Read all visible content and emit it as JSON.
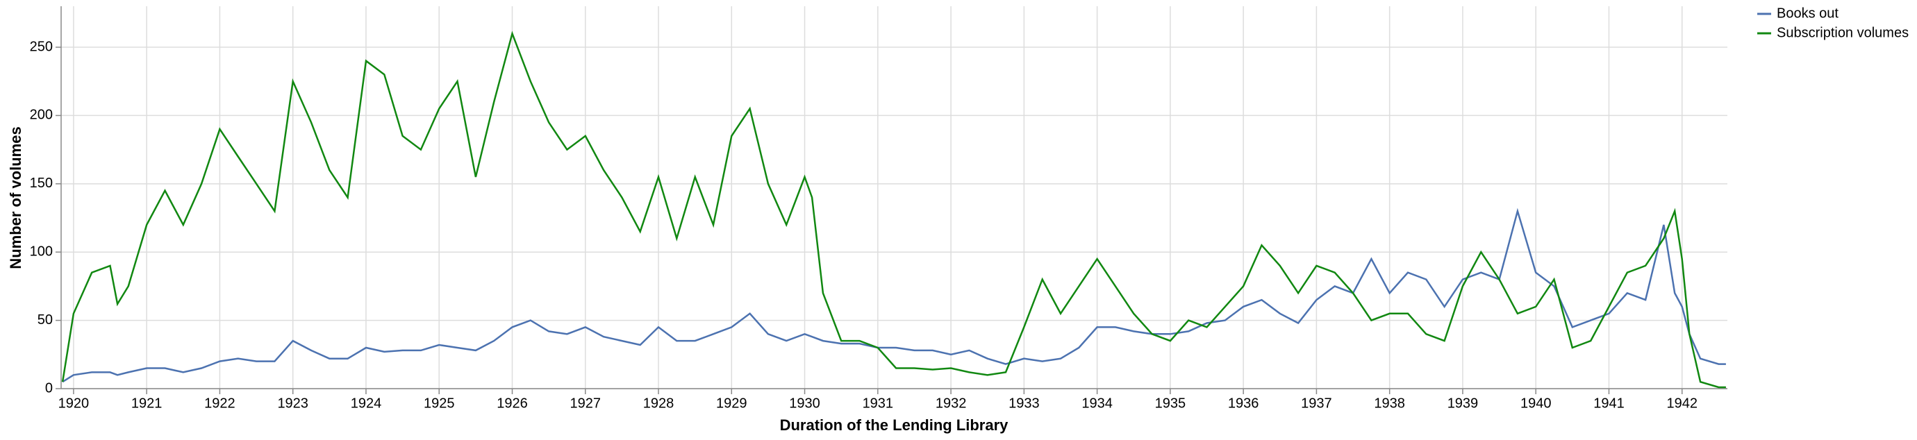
{
  "chart_data": {
    "type": "line",
    "x_label": "Duration of the Lending Library",
    "y_label": "Number of volumes",
    "x": [
      1919.85,
      1920,
      1920.25,
      1920.5,
      1920.6,
      1920.75,
      1921,
      1921.25,
      1921.5,
      1921.75,
      1922,
      1922.25,
      1922.5,
      1922.75,
      1923,
      1923.25,
      1923.5,
      1923.75,
      1924,
      1924.25,
      1924.5,
      1924.75,
      1925,
      1925.25,
      1925.5,
      1925.75,
      1926,
      1926.25,
      1926.5,
      1926.75,
      1927,
      1927.25,
      1927.5,
      1927.75,
      1928,
      1928.25,
      1928.5,
      1928.75,
      1929,
      1929.25,
      1929.5,
      1929.75,
      1930,
      1930.1,
      1930.25,
      1930.5,
      1930.75,
      1931,
      1931.25,
      1931.5,
      1931.75,
      1932,
      1932.25,
      1932.5,
      1932.75,
      1933,
      1933.25,
      1933.5,
      1933.75,
      1934,
      1934.25,
      1934.5,
      1934.75,
      1935,
      1935.25,
      1935.5,
      1935.75,
      1936,
      1936.25,
      1936.5,
      1936.75,
      1937,
      1937.25,
      1937.5,
      1937.75,
      1938,
      1938.25,
      1938.5,
      1938.75,
      1939,
      1939.25,
      1939.5,
      1939.75,
      1940,
      1940.25,
      1940.5,
      1940.75,
      1941,
      1941.25,
      1941.5,
      1941.75,
      1941.9,
      1942,
      1942.1,
      1942.25,
      1942.5,
      1942.6
    ],
    "series": [
      {
        "name": "Books out",
        "color": "#4c72b0",
        "values": [
          5,
          10,
          12,
          12,
          10,
          12,
          15,
          15,
          12,
          15,
          20,
          22,
          20,
          20,
          35,
          28,
          22,
          22,
          30,
          27,
          28,
          28,
          32,
          30,
          28,
          35,
          45,
          50,
          42,
          40,
          45,
          38,
          35,
          32,
          45,
          35,
          35,
          40,
          45,
          55,
          40,
          35,
          40,
          38,
          35,
          33,
          33,
          30,
          30,
          28,
          28,
          25,
          28,
          22,
          18,
          22,
          20,
          22,
          30,
          45,
          45,
          42,
          40,
          40,
          42,
          48,
          50,
          60,
          65,
          55,
          48,
          65,
          75,
          70,
          95,
          70,
          85,
          80,
          60,
          80,
          85,
          80,
          130,
          85,
          75,
          45,
          50,
          55,
          70,
          65,
          120,
          70,
          60,
          40,
          22,
          18,
          18
        ]
      },
      {
        "name": "Subscription volumes",
        "color": "#118811",
        "values": [
          5,
          55,
          85,
          90,
          62,
          75,
          120,
          145,
          120,
          150,
          190,
          170,
          150,
          130,
          225,
          195,
          160,
          140,
          240,
          230,
          185,
          175,
          205,
          225,
          155,
          210,
          260,
          225,
          195,
          175,
          185,
          160,
          140,
          115,
          155,
          110,
          155,
          120,
          185,
          205,
          150,
          120,
          155,
          140,
          70,
          35,
          35,
          30,
          15,
          15,
          14,
          15,
          12,
          10,
          12,
          45,
          80,
          55,
          75,
          95,
          75,
          55,
          40,
          35,
          50,
          45,
          60,
          75,
          105,
          90,
          70,
          90,
          85,
          70,
          50,
          55,
          55,
          40,
          35,
          75,
          100,
          80,
          55,
          60,
          80,
          30,
          35,
          60,
          85,
          90,
          110,
          130,
          95,
          40,
          5,
          1,
          1
        ]
      }
    ],
    "xlim": [
      1919.83,
      1942.62
    ],
    "xticks": [
      1920,
      1921,
      1922,
      1923,
      1924,
      1925,
      1926,
      1927,
      1928,
      1929,
      1930,
      1931,
      1932,
      1933,
      1934,
      1935,
      1936,
      1937,
      1938,
      1939,
      1940,
      1941,
      1942
    ],
    "ylim": [
      0,
      280
    ],
    "yticks": [
      0,
      50,
      100,
      150,
      200,
      250
    ],
    "grid": true,
    "legend": "top-right"
  }
}
